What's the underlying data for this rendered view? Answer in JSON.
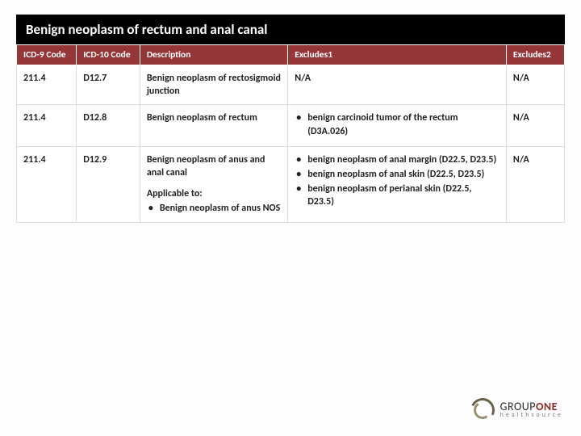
{
  "title": "Benign neoplasm of rectum and anal canal",
  "columns": {
    "c1": "ICD-9 Code",
    "c2": "ICD-10 Code",
    "c3": "Description",
    "c4": "Excludes1",
    "c5": "Excludes2"
  },
  "rows": {
    "r1": {
      "icd9": "211.4",
      "icd10": "D12.7",
      "desc_main": "Benign neoplasm of rectosigmoid junction",
      "excl1_text": "N/A",
      "excl2": "N/A"
    },
    "r2": {
      "icd9": "211.4",
      "icd10": "D12.8",
      "desc_main": "Benign neoplasm of rectum",
      "excl1_b1": "benign carcinoid tumor of the rectum (D3A.026)",
      "excl2": "N/A"
    },
    "r3": {
      "icd9": "211.4",
      "icd10": "D12.9",
      "desc_main": "Benign neoplasm of anus and anal canal",
      "desc_sub1": "Applicable to:",
      "desc_sub2": "Benign neoplasm of anus NOS",
      "excl1_b1": "benign neoplasm of anal margin (D22.5, D23.5)",
      "excl1_b2": "benign neoplasm of anal skin (D22.5, D23.5)",
      "excl1_b3": "benign neoplasm of perianal skin (D22.5, D23.5)",
      "excl2": "N/A"
    }
  },
  "logo": {
    "line1a": "GROUP",
    "line1b": "ONE",
    "line2": "healthsource"
  },
  "colors": {
    "header_bg": "#953639",
    "title_bg": "#000000",
    "brand_red": "#8a2a2a"
  }
}
